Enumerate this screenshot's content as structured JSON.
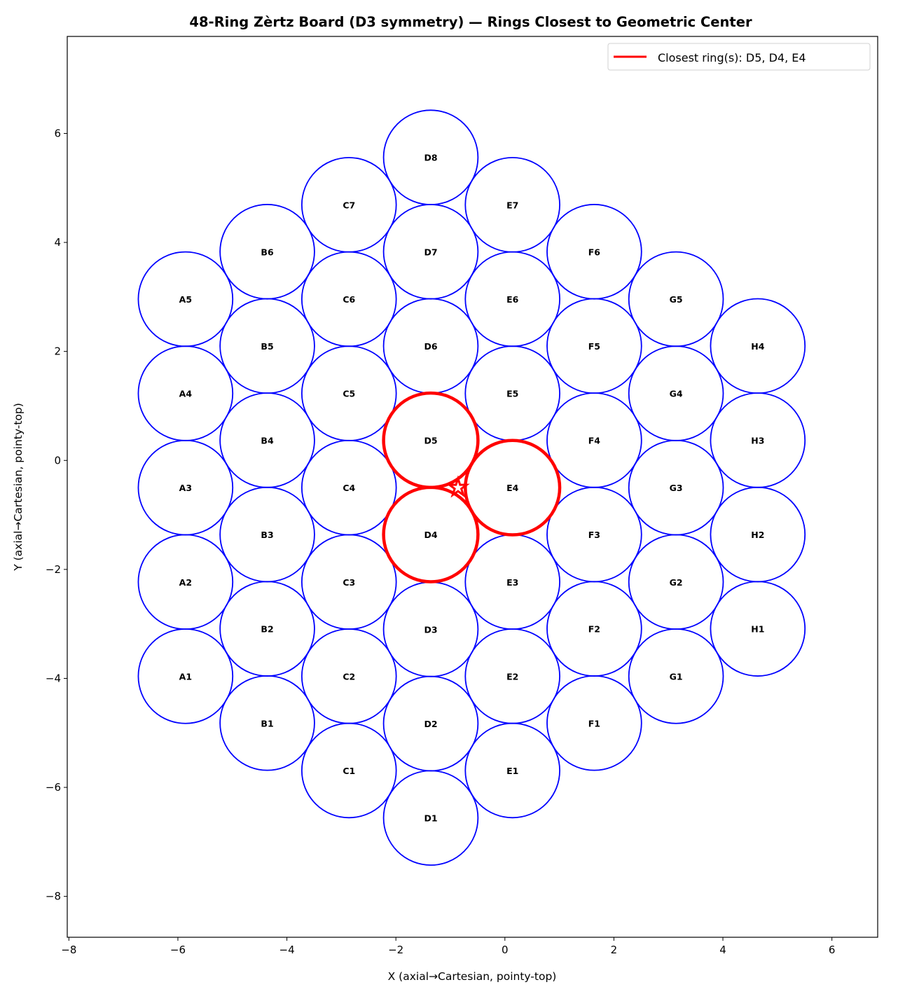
{
  "chart_data": {
    "type": "scatter",
    "title": "48-Ring Zèrtz Board (D3 symmetry) — Rings Closest to Geometric Center",
    "xlabel": "X (axial→Cartesian, pointy-top)",
    "ylabel": "Y (axial→Cartesian, pointy-top)",
    "xlim": [
      -8.03,
      6.84
    ],
    "ylim": [
      -8.75,
      7.78
    ],
    "xticks": [
      -8,
      -6,
      -4,
      -2,
      0,
      2,
      4,
      6
    ],
    "yticks": [
      -8,
      -6,
      -4,
      -2,
      0,
      2,
      4,
      6
    ],
    "xtick_labels": [
      "−8",
      "−6",
      "−4",
      "−2",
      "0",
      "2",
      "4",
      "6"
    ],
    "ytick_labels": [
      "−8",
      "−6",
      "−4",
      "−2",
      "0",
      "2",
      "4",
      "6"
    ],
    "grid": false,
    "legend": {
      "placement": "top-right",
      "entries": [
        {
          "label": "Closest ring(s): D5, D4, E4",
          "color": "#ff0000"
        }
      ]
    },
    "ring_radius": 0.866,
    "colors": {
      "ring": "#0000ff",
      "closest": "#ff0000",
      "label": "#000000"
    },
    "columns": [
      {
        "name": "A",
        "x": -5.86,
        "y": [
          -3.96,
          -2.23,
          -0.5,
          1.23,
          2.96
        ]
      },
      {
        "name": "B",
        "x": -4.36,
        "y": [
          -4.82,
          -3.09,
          -1.36,
          0.37,
          2.1,
          3.83
        ]
      },
      {
        "name": "C",
        "x": -2.86,
        "y": [
          -5.69,
          -3.96,
          -2.23,
          -0.5,
          1.23,
          2.96,
          4.69
        ]
      },
      {
        "name": "D",
        "x": -1.36,
        "y": [
          -6.56,
          -4.83,
          -3.1,
          -1.36,
          0.37,
          2.1,
          3.83,
          5.56
        ]
      },
      {
        "name": "E",
        "x": 0.14,
        "y": [
          -5.69,
          -3.96,
          -2.23,
          -0.5,
          1.23,
          2.96,
          4.69
        ]
      },
      {
        "name": "F",
        "x": 1.64,
        "y": [
          -4.82,
          -3.09,
          -1.36,
          0.37,
          2.1,
          3.83
        ]
      },
      {
        "name": "G",
        "x": 3.14,
        "y": [
          -3.96,
          -2.23,
          -0.5,
          1.23,
          2.96
        ]
      },
      {
        "name": "H",
        "x": 4.64,
        "y": [
          -3.09,
          -1.36,
          0.37,
          2.1
        ]
      }
    ],
    "closest": [
      "D5",
      "D4",
      "E4"
    ],
    "geometric_center": {
      "x": -0.86,
      "y": -0.5,
      "marker": "star",
      "color": "#ff0000"
    }
  }
}
